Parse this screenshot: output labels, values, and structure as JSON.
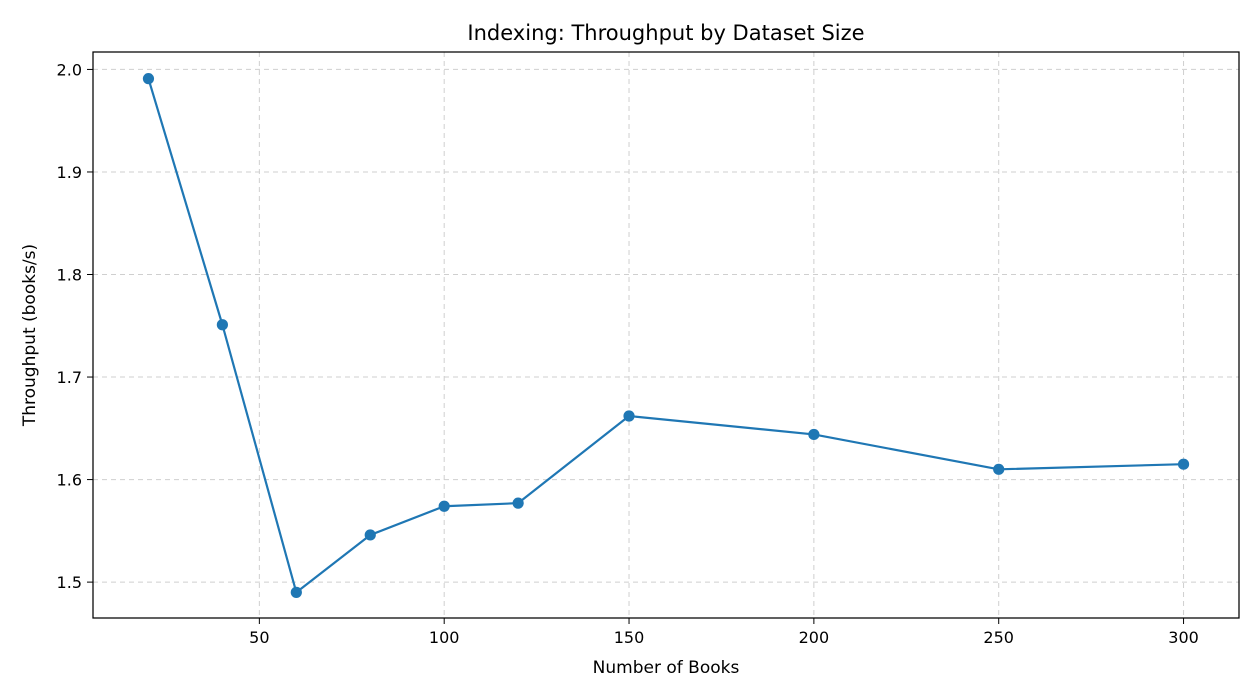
{
  "chart_data": {
    "type": "line",
    "title": "Indexing: Throughput by Dataset Size",
    "xlabel": "Number of Books",
    "ylabel": "Throughput (books/s)",
    "xlim": [
      5,
      315
    ],
    "ylim": [
      1.465,
      2.017
    ],
    "xticks": [
      50,
      100,
      150,
      200,
      250,
      300
    ],
    "yticks": [
      1.5,
      1.6,
      1.7,
      1.8,
      1.9,
      2.0
    ],
    "grid": true,
    "series": [
      {
        "color": "#1f77b4",
        "marker": "circle",
        "x": [
          20,
          40,
          60,
          80,
          100,
          120,
          150,
          200,
          250,
          300
        ],
        "y": [
          1.991,
          1.751,
          1.49,
          1.546,
          1.574,
          1.577,
          1.662,
          1.644,
          1.61,
          1.615
        ]
      }
    ]
  }
}
